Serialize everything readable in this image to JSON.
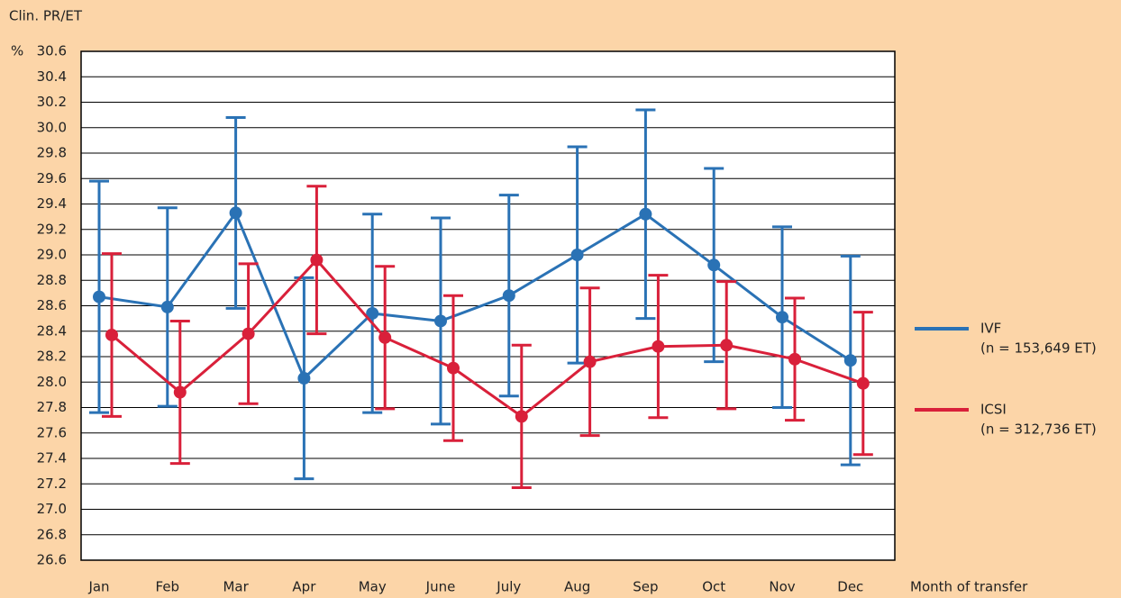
{
  "chart_data": {
    "type": "errorbar-line",
    "y_label": "Clin. PR/ET",
    "y_unit": "%",
    "x_label": "Month of transfer",
    "categories": [
      "Jan",
      "Feb",
      "Mar",
      "Apr",
      "May",
      "June",
      "July",
      "Aug",
      "Sep",
      "Oct",
      "Nov",
      "Dec"
    ],
    "series": [
      {
        "name": "IVF",
        "n_label": "(n = 153,649 ET)",
        "color": "#2a72b5",
        "values": [
          28.67,
          28.59,
          29.33,
          28.03,
          28.54,
          28.48,
          28.68,
          29.0,
          29.32,
          28.92,
          28.51,
          28.17
        ],
        "errors": [
          0.91,
          0.78,
          0.75,
          0.79,
          0.78,
          0.81,
          0.79,
          0.85,
          0.82,
          0.76,
          0.71,
          0.82
        ]
      },
      {
        "name": "ICSI",
        "n_label": "(n = 312,736 ET)",
        "color": "#d9203a",
        "values": [
          28.37,
          27.92,
          28.38,
          28.96,
          28.35,
          28.11,
          27.73,
          28.16,
          28.28,
          28.29,
          28.18,
          27.99
        ],
        "errors": [
          0.64,
          0.56,
          0.55,
          0.58,
          0.56,
          0.57,
          0.56,
          0.58,
          0.56,
          0.5,
          0.48,
          0.56
        ]
      }
    ],
    "ylim": [
      26.6,
      30.6
    ],
    "yticks": [
      26.6,
      26.8,
      {
        "value": 27,
        "label": "27.0"
      },
      27.2,
      27.4,
      27.6,
      27.8,
      {
        "value": 28,
        "label": "28.0"
      },
      28.2,
      28.4,
      28.6,
      28.8,
      {
        "value": 29,
        "label": "29.0"
      },
      29.2,
      29.4,
      29.6,
      29.8,
      {
        "value": 30,
        "label": "30.0"
      },
      30.2,
      30.4,
      30.6
    ],
    "grid": true
  }
}
